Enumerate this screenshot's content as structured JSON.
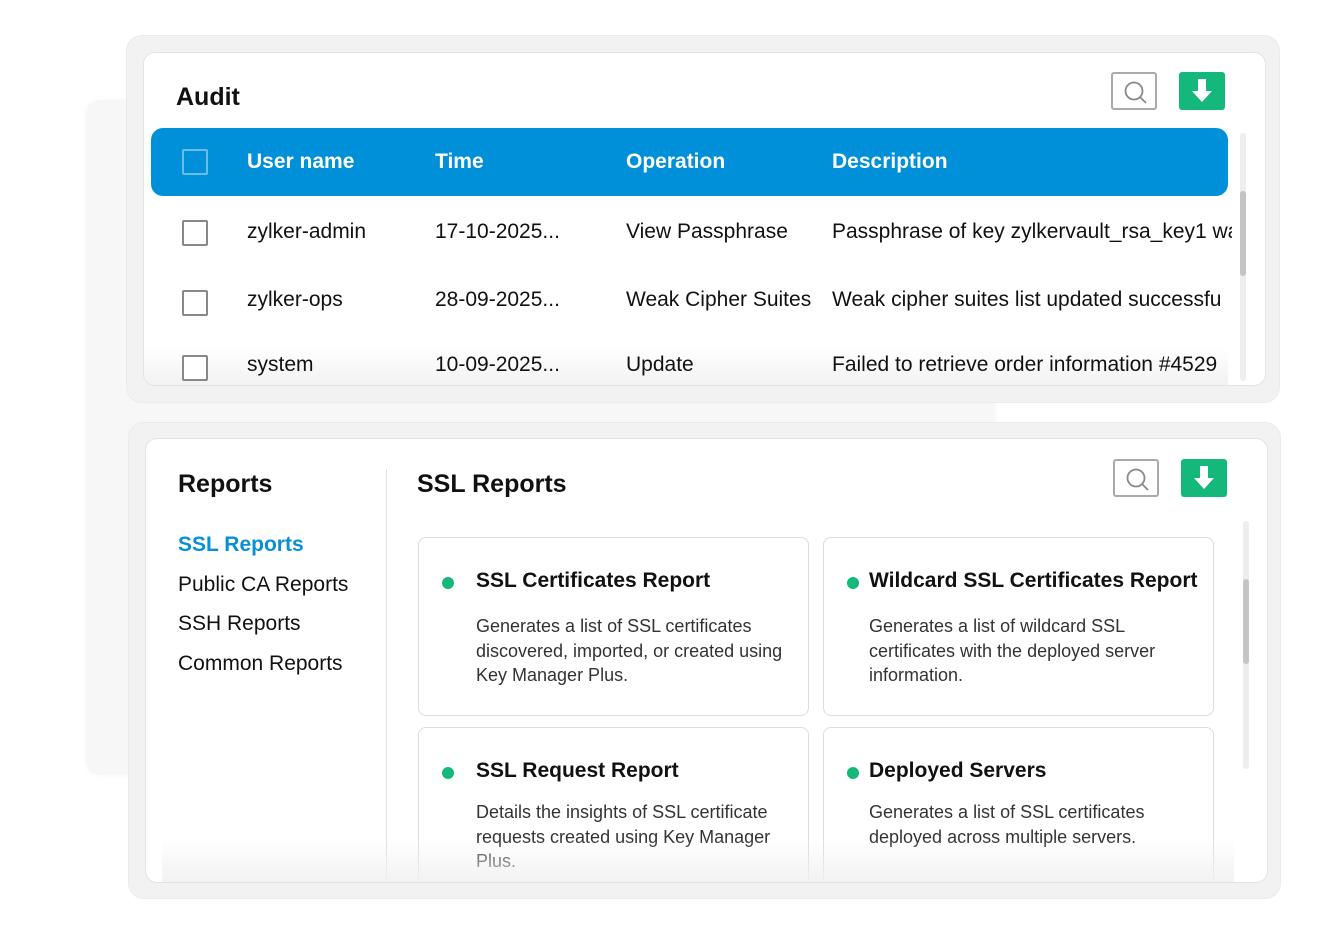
{
  "audit": {
    "title": "Audit",
    "search_icon": "search-icon",
    "download_icon": "download-arrow-icon",
    "columns": [
      "User name",
      "Time",
      "Operation",
      "Description"
    ],
    "rows": [
      {
        "user": "zylker-admin",
        "time": "17-10-2025...",
        "operation": "View Passphrase",
        "description": "Passphrase of key zylkervault_rsa_key1 wa"
      },
      {
        "user": "zylker-ops",
        "time": "28-09-2025...",
        "operation": "Weak Cipher Suites",
        "description": "Weak cipher suites list updated successfu"
      },
      {
        "user": "system",
        "time": "10-09-2025...",
        "operation": "Update",
        "description": "Failed to retrieve order information #4529"
      }
    ]
  },
  "reports": {
    "title": "Reports",
    "menu": [
      "SSL Reports",
      "Public CA Reports",
      "SSH Reports",
      "Common Reports"
    ],
    "active": "SSL Reports",
    "section_title": "SSL Reports",
    "cards": [
      {
        "title": "SSL Certificates Report",
        "description": "Generates a list of SSL certificates discovered, imported, or created using Key Manager Plus."
      },
      {
        "title": "Wildcard SSL Certificates Report",
        "description": "Generates a list of wildcard SSL certificates with the deployed server information."
      },
      {
        "title": "SSL Request Report",
        "description": "Details the insights of SSL certificate requests created using Key Manager Plus."
      },
      {
        "title": "Deployed Servers",
        "description": "Generates a list of SSL certificates deployed across multiple servers."
      }
    ]
  },
  "colors": {
    "accent": "#0090d9",
    "download": "#14b87a",
    "status_dot": "#14b87a"
  }
}
